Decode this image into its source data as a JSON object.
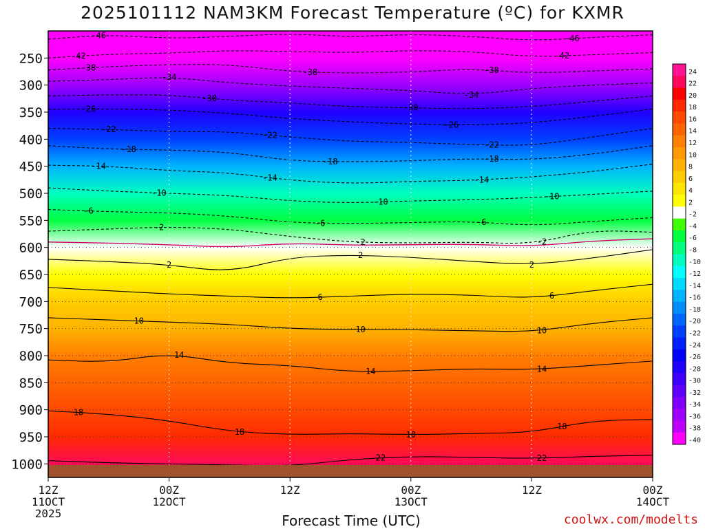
{
  "chart_data": {
    "type": "heatmap",
    "title": "2025101112 NAM3KM Forecast Temperature (ºC) for KXMR",
    "xlabel": "Forecast Time (UTC)",
    "ylabel": "",
    "credit": "coolwx.com/modelts",
    "x_ticks": [
      {
        "hours": 0,
        "line1": "12Z",
        "line2": "11OCT",
        "line3": "2025"
      },
      {
        "hours": 12,
        "line1": "00Z",
        "line2": "12OCT",
        "line3": ""
      },
      {
        "hours": 24,
        "line1": "12Z",
        "line2": "",
        "line3": ""
      },
      {
        "hours": 36,
        "line1": "00Z",
        "line2": "13OCT",
        "line3": ""
      },
      {
        "hours": 48,
        "line1": "12Z",
        "line2": "",
        "line3": ""
      },
      {
        "hours": 60,
        "line1": "00Z",
        "line2": "14OCT",
        "line3": ""
      }
    ],
    "xlim": [
      0,
      60
    ],
    "y_ticks": [
      250,
      300,
      350,
      400,
      450,
      500,
      550,
      600,
      650,
      700,
      750,
      800,
      850,
      900,
      950,
      1000
    ],
    "ylim_hPa": [
      1025,
      200
    ],
    "colorbar": {
      "levels": [
        "24",
        "22",
        "20",
        "18",
        "16",
        "14",
        "12",
        "10",
        "8",
        "6",
        "4",
        "2",
        "-2",
        "-4",
        "-6",
        "-8",
        "-10",
        "-12",
        "-14",
        "-16",
        "-18",
        "-20",
        "-22",
        "-24",
        "-26",
        "-28",
        "-30",
        "-32",
        "-34",
        "-36",
        "-38",
        "-40"
      ],
      "colors": [
        "#ff1493",
        "#ff0a5a",
        "#ff0000",
        "#ff2a00",
        "#ff4a00",
        "#ff6400",
        "#ff7f00",
        "#ff9900",
        "#ffb300",
        "#ffcc00",
        "#ffe600",
        "#ffff00",
        "#ffffff",
        "#40ff00",
        "#00ff40",
        "#00ff7f",
        "#00ffbf",
        "#00ffff",
        "#00d9ff",
        "#00b3ff",
        "#008cff",
        "#0066ff",
        "#0040ff",
        "#0020ff",
        "#0000ff",
        "#2000ff",
        "#4000ff",
        "#6000ff",
        "#8000ff",
        "#a000ff",
        "#c000ff",
        "#ff00ff"
      ]
    },
    "temperature_profile": [
      {
        "hPa": 200,
        "t": -48
      },
      {
        "hPa": 250,
        "t": -43
      },
      {
        "hPa": 300,
        "t": -36
      },
      {
        "hPa": 350,
        "t": -27
      },
      {
        "hPa": 400,
        "t": -21
      },
      {
        "hPa": 450,
        "t": -15
      },
      {
        "hPa": 500,
        "t": -10
      },
      {
        "hPa": 550,
        "t": -5
      },
      {
        "hPa": 600,
        "t": 0
      },
      {
        "hPa": 650,
        "t": 3
      },
      {
        "hPa": 700,
        "t": 6
      },
      {
        "hPa": 750,
        "t": 9
      },
      {
        "hPa": 800,
        "t": 12
      },
      {
        "hPa": 850,
        "t": 14
      },
      {
        "hPa": 900,
        "t": 17
      },
      {
        "hPa": 950,
        "t": 19
      },
      {
        "hPa": 1000,
        "t": 22
      },
      {
        "hPa": 1025,
        "t": 23
      }
    ],
    "surface_hPa": 1000,
    "contours": [
      {
        "value": -46,
        "label": "-46",
        "dashed": true,
        "color": "#000000",
        "points": [
          [
            0,
            215
          ],
          [
            6,
            207
          ],
          [
            12,
            214
          ],
          [
            18,
            210
          ],
          [
            24,
            205
          ],
          [
            30,
            211
          ],
          [
            36,
            206
          ],
          [
            42,
            210
          ],
          [
            48,
            218
          ],
          [
            54,
            212
          ],
          [
            60,
            207
          ]
        ],
        "label_at": [
          5,
          52
        ]
      },
      {
        "value": -42,
        "label": "-42",
        "dashed": true,
        "color": "#000000",
        "points": [
          [
            0,
            250
          ],
          [
            6,
            243
          ],
          [
            12,
            241
          ],
          [
            18,
            236
          ],
          [
            24,
            238
          ],
          [
            30,
            240
          ],
          [
            36,
            236
          ],
          [
            42,
            238
          ],
          [
            48,
            248
          ],
          [
            54,
            244
          ],
          [
            60,
            240
          ]
        ],
        "label_at": [
          3,
          51
        ]
      },
      {
        "value": -38,
        "label": "-38",
        "dashed": true,
        "color": "#000000",
        "points": [
          [
            0,
            272
          ],
          [
            6,
            266
          ],
          [
            12,
            262
          ],
          [
            18,
            262
          ],
          [
            24,
            275
          ],
          [
            30,
            278
          ],
          [
            36,
            276
          ],
          [
            42,
            270
          ],
          [
            48,
            278
          ],
          [
            54,
            274
          ],
          [
            60,
            270
          ]
        ],
        "label_at": [
          4,
          26,
          44
        ]
      },
      {
        "value": -34,
        "label": "-34",
        "dashed": true,
        "color": "#000000",
        "points": [
          [
            0,
            293
          ],
          [
            6,
            290
          ],
          [
            12,
            285
          ],
          [
            18,
            296
          ],
          [
            24,
            302
          ],
          [
            30,
            306
          ],
          [
            36,
            310
          ],
          [
            42,
            318
          ],
          [
            48,
            306
          ],
          [
            54,
            300
          ],
          [
            60,
            296
          ]
        ],
        "label_at": [
          12,
          42
        ]
      },
      {
        "value": -30,
        "label": "-30",
        "dashed": true,
        "color": "#000000",
        "points": [
          [
            0,
            320
          ],
          [
            6,
            318
          ],
          [
            12,
            318
          ],
          [
            18,
            328
          ],
          [
            24,
            333
          ],
          [
            30,
            340
          ],
          [
            36,
            342
          ],
          [
            42,
            344
          ],
          [
            48,
            340
          ],
          [
            54,
            330
          ],
          [
            60,
            320
          ]
        ],
        "label_at": [
          16,
          36
        ]
      },
      {
        "value": -26,
        "label": "-26",
        "dashed": true,
        "color": "#000000",
        "points": [
          [
            0,
            345
          ],
          [
            6,
            344
          ],
          [
            12,
            346
          ],
          [
            18,
            352
          ],
          [
            24,
            362
          ],
          [
            30,
            368
          ],
          [
            36,
            372
          ],
          [
            42,
            374
          ],
          [
            48,
            370
          ],
          [
            54,
            358
          ],
          [
            60,
            344
          ]
        ],
        "label_at": [
          4,
          40
        ]
      },
      {
        "value": -22,
        "label": "-22",
        "dashed": true,
        "color": "#000000",
        "points": [
          [
            0,
            380
          ],
          [
            6,
            382
          ],
          [
            12,
            386
          ],
          [
            18,
            386
          ],
          [
            24,
            396
          ],
          [
            30,
            404
          ],
          [
            36,
            406
          ],
          [
            42,
            410
          ],
          [
            48,
            412
          ],
          [
            54,
            396
          ],
          [
            60,
            380
          ]
        ],
        "label_at": [
          6,
          22,
          44
        ]
      },
      {
        "value": -18,
        "label": "-18",
        "dashed": true,
        "color": "#000000",
        "points": [
          [
            0,
            412
          ],
          [
            6,
            418
          ],
          [
            12,
            420
          ],
          [
            18,
            424
          ],
          [
            24,
            440
          ],
          [
            30,
            442
          ],
          [
            36,
            440
          ],
          [
            42,
            436
          ],
          [
            48,
            438
          ],
          [
            54,
            428
          ],
          [
            60,
            412
          ]
        ],
        "label_at": [
          8,
          28,
          44
        ]
      },
      {
        "value": -14,
        "label": "-14",
        "dashed": true,
        "color": "#000000",
        "points": [
          [
            0,
            448
          ],
          [
            6,
            450
          ],
          [
            12,
            458
          ],
          [
            18,
            462
          ],
          [
            24,
            476
          ],
          [
            30,
            482
          ],
          [
            36,
            478
          ],
          [
            42,
            476
          ],
          [
            48,
            470
          ],
          [
            54,
            460
          ],
          [
            60,
            446
          ]
        ],
        "label_at": [
          5,
          22,
          43
        ]
      },
      {
        "value": -10,
        "label": "-10",
        "dashed": true,
        "color": "#000000",
        "points": [
          [
            0,
            490
          ],
          [
            6,
            496
          ],
          [
            12,
            500
          ],
          [
            18,
            504
          ],
          [
            24,
            514
          ],
          [
            30,
            518
          ],
          [
            36,
            514
          ],
          [
            42,
            512
          ],
          [
            48,
            508
          ],
          [
            54,
            502
          ],
          [
            60,
            496
          ]
        ],
        "label_at": [
          11,
          33,
          50
        ]
      },
      {
        "value": -6,
        "label": "-6",
        "dashed": true,
        "color": "#000000",
        "points": [
          [
            0,
            530
          ],
          [
            6,
            534
          ],
          [
            12,
            536
          ],
          [
            18,
            542
          ],
          [
            24,
            554
          ],
          [
            30,
            556
          ],
          [
            36,
            554
          ],
          [
            42,
            552
          ],
          [
            48,
            560
          ],
          [
            54,
            552
          ],
          [
            60,
            545
          ]
        ],
        "label_at": [
          4,
          27,
          43
        ]
      },
      {
        "value": -2,
        "label": "-2",
        "dashed": true,
        "color": "#000000",
        "points": [
          [
            0,
            570
          ],
          [
            6,
            566
          ],
          [
            12,
            562
          ],
          [
            18,
            566
          ],
          [
            24,
            580
          ],
          [
            30,
            590
          ],
          [
            36,
            592
          ],
          [
            42,
            590
          ],
          [
            48,
            594
          ],
          [
            54,
            568
          ],
          [
            60,
            572
          ]
        ],
        "label_at": [
          11,
          31,
          49
        ]
      },
      {
        "value": 0,
        "label": "",
        "dashed": false,
        "color": "#d1006b",
        "points": [
          [
            0,
            590
          ],
          [
            6,
            592
          ],
          [
            12,
            595
          ],
          [
            18,
            600
          ],
          [
            24,
            592
          ],
          [
            30,
            596
          ],
          [
            36,
            595
          ],
          [
            42,
            594
          ],
          [
            48,
            598
          ],
          [
            54,
            588
          ],
          [
            60,
            584
          ]
        ],
        "label_at": []
      },
      {
        "value": 2,
        "label": "2",
        "dashed": false,
        "color": "#000000",
        "points": [
          [
            0,
            622
          ],
          [
            6,
            626
          ],
          [
            12,
            632
          ],
          [
            18,
            646
          ],
          [
            24,
            618
          ],
          [
            30,
            614
          ],
          [
            36,
            618
          ],
          [
            42,
            626
          ],
          [
            48,
            632
          ],
          [
            54,
            620
          ],
          [
            60,
            604
          ]
        ],
        "label_at": [
          12,
          31,
          48
        ]
      },
      {
        "value": 6,
        "label": "6",
        "dashed": false,
        "color": "#000000",
        "points": [
          [
            0,
            674
          ],
          [
            6,
            680
          ],
          [
            12,
            686
          ],
          [
            18,
            690
          ],
          [
            24,
            694
          ],
          [
            30,
            690
          ],
          [
            36,
            686
          ],
          [
            42,
            688
          ],
          [
            48,
            694
          ],
          [
            54,
            680
          ],
          [
            60,
            668
          ]
        ],
        "label_at": [
          27,
          50
        ]
      },
      {
        "value": 10,
        "label": "10",
        "dashed": false,
        "color": "#000000",
        "points": [
          [
            0,
            730
          ],
          [
            6,
            734
          ],
          [
            12,
            738
          ],
          [
            18,
            742
          ],
          [
            24,
            750
          ],
          [
            30,
            752
          ],
          [
            36,
            752
          ],
          [
            42,
            754
          ],
          [
            48,
            756
          ],
          [
            54,
            740
          ],
          [
            60,
            730
          ]
        ],
        "label_at": [
          9,
          31,
          49
        ]
      },
      {
        "value": 14,
        "label": "14",
        "dashed": false,
        "color": "#000000",
        "points": [
          [
            0,
            808
          ],
          [
            6,
            812
          ],
          [
            12,
            796
          ],
          [
            18,
            814
          ],
          [
            24,
            818
          ],
          [
            30,
            830
          ],
          [
            36,
            828
          ],
          [
            42,
            824
          ],
          [
            48,
            826
          ],
          [
            54,
            818
          ],
          [
            60,
            810
          ]
        ],
        "label_at": [
          13,
          32,
          49
        ]
      },
      {
        "value": 18,
        "label": "18",
        "dashed": false,
        "color": "#000000",
        "points": [
          [
            0,
            902
          ],
          [
            6,
            908
          ],
          [
            12,
            920
          ],
          [
            18,
            940
          ],
          [
            24,
            946
          ],
          [
            30,
            944
          ],
          [
            36,
            946
          ],
          [
            42,
            944
          ],
          [
            48,
            942
          ],
          [
            54,
            920
          ],
          [
            60,
            918
          ]
        ],
        "label_at": [
          3,
          19,
          36,
          51
        ]
      },
      {
        "value": 22,
        "label": "22",
        "dashed": false,
        "color": "#000000",
        "points": [
          [
            0,
            994
          ],
          [
            6,
            998
          ],
          [
            12,
            1000
          ],
          [
            18,
            1002
          ],
          [
            24,
            1004
          ],
          [
            30,
            992
          ],
          [
            36,
            986
          ],
          [
            42,
            988
          ],
          [
            48,
            990
          ],
          [
            54,
            986
          ],
          [
            60,
            984
          ]
        ],
        "label_at": [
          33,
          49
        ]
      }
    ]
  }
}
